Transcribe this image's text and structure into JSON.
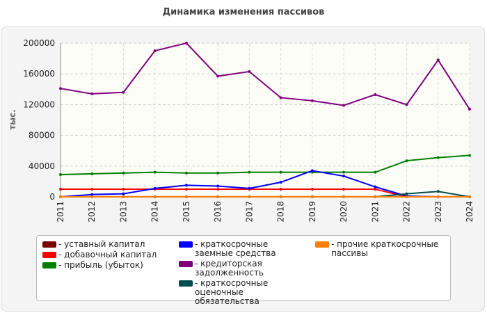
{
  "chart_data": {
    "type": "line",
    "title": "Динамика изменения пассивов",
    "y_label": "тыс.",
    "x": [
      "2011",
      "2012",
      "2013",
      "2014",
      "2015",
      "2016",
      "2017",
      "2018",
      "2019",
      "2020",
      "2021",
      "2022",
      "2023",
      "2024"
    ],
    "ylim": [
      0,
      200000
    ],
    "yticks": [
      0,
      40000,
      80000,
      120000,
      160000,
      200000
    ],
    "grid": true,
    "series": [
      {
        "name": "- уставный капитал",
        "color": "#7b0000",
        "values": [
          100,
          100,
          100,
          100,
          100,
          100,
          100,
          100,
          100,
          100,
          100,
          100,
          100,
          100
        ]
      },
      {
        "name": "- добавочный капитал",
        "color": "#ff0000",
        "values": [
          10000,
          10000,
          10000,
          10000,
          10000,
          10000,
          10000,
          10000,
          10000,
          10000,
          10000,
          0,
          0,
          0
        ]
      },
      {
        "name": "- прибыль (убыток)",
        "color": "#008000",
        "values": [
          29000,
          30000,
          31000,
          32000,
          31000,
          31000,
          32000,
          32000,
          32000,
          32000,
          32000,
          47000,
          51000,
          54000
        ]
      },
      {
        "name": "- краткосрочные заемные средства",
        "color": "#0000ff",
        "values": [
          0,
          3000,
          4000,
          11000,
          15000,
          14000,
          11000,
          19000,
          34000,
          27000,
          13000,
          1000,
          0,
          0
        ]
      },
      {
        "name": "- кредиторская задолженность",
        "color": "#800080",
        "values": [
          141000,
          134000,
          136000,
          190000,
          200000,
          157000,
          163000,
          129000,
          125000,
          119000,
          133000,
          120000,
          178000,
          114000
        ]
      },
      {
        "name": "- краткосрочные оценочные обязательства",
        "color": "#004d4d",
        "values": [
          0,
          0,
          0,
          0,
          0,
          0,
          0,
          0,
          0,
          0,
          0,
          4000,
          7000,
          0
        ]
      },
      {
        "name": "- прочие краткосрочные пассивы",
        "color": "#ff8000",
        "values": [
          0,
          0,
          0,
          0,
          0,
          0,
          0,
          0,
          0,
          0,
          0,
          0,
          0,
          0
        ]
      }
    ]
  }
}
